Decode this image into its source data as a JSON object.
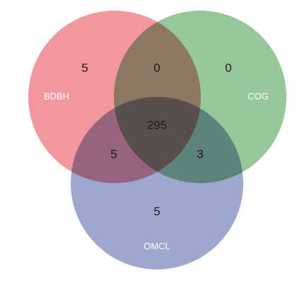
{
  "diagram": {
    "type": "venn-3",
    "sets": [
      {
        "name": "BDBH",
        "color": "#e8424c"
      },
      {
        "name": "COG",
        "color": "#3f9a48"
      },
      {
        "name": "OMCL",
        "color": "#4d5ea3"
      }
    ],
    "regions": {
      "bdbh_only": "5",
      "bdbh_cog": "0",
      "cog_only": "0",
      "bdbh_omcl": "5",
      "all_three": "295",
      "cog_omcl": "3",
      "omcl_only": "5"
    }
  }
}
